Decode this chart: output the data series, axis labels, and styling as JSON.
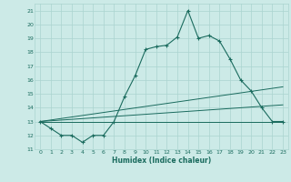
{
  "title": "",
  "xlabel": "Humidex (Indice chaleur)",
  "bg_color": "#cceae7",
  "grid_color": "#aad4d0",
  "line_color": "#1a6b5e",
  "xlim": [
    -0.5,
    23.5
  ],
  "ylim": [
    11,
    21.5
  ],
  "yticks": [
    11,
    12,
    13,
    14,
    15,
    16,
    17,
    18,
    19,
    20,
    21
  ],
  "xticks": [
    0,
    1,
    2,
    3,
    4,
    5,
    6,
    7,
    8,
    9,
    10,
    11,
    12,
    13,
    14,
    15,
    16,
    17,
    18,
    19,
    20,
    21,
    22,
    23
  ],
  "line1_x": [
    0,
    1,
    2,
    3,
    4,
    5,
    6,
    7,
    8,
    9,
    10,
    11,
    12,
    13,
    14,
    15,
    16,
    17,
    18,
    19,
    20,
    21,
    22,
    23
  ],
  "line1_y": [
    13.0,
    12.5,
    12.0,
    12.0,
    11.5,
    12.0,
    12.0,
    13.0,
    14.8,
    16.3,
    18.2,
    18.4,
    18.5,
    19.1,
    21.0,
    19.0,
    19.2,
    18.8,
    17.5,
    16.0,
    15.2,
    14.0,
    13.0,
    13.0
  ],
  "line2_x": [
    0,
    23
  ],
  "line2_y": [
    13.0,
    13.0
  ],
  "line3_x": [
    0,
    23
  ],
  "line3_y": [
    13.0,
    15.5
  ],
  "line4_x": [
    0,
    23
  ],
  "line4_y": [
    13.0,
    14.2
  ]
}
